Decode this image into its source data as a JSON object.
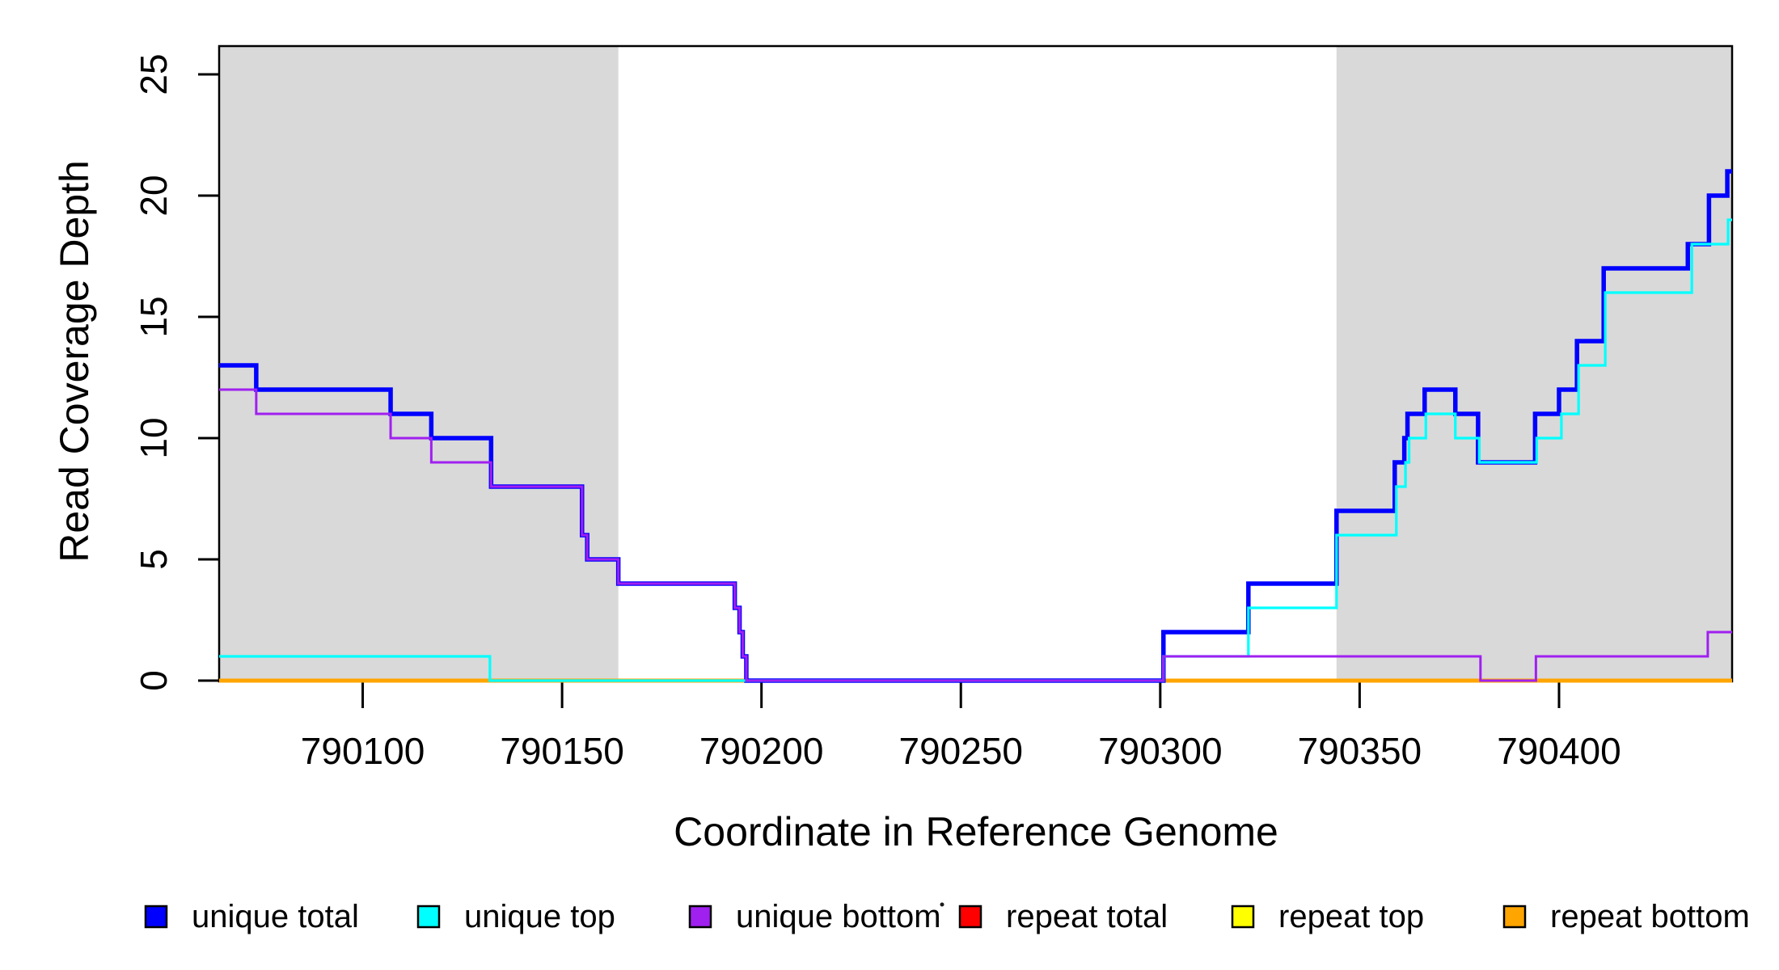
{
  "figure": {
    "xlabel": "Coordinate in Reference Genome",
    "ylabel": "Read Coverage Depth"
  },
  "chart_data": {
    "type": "line",
    "subtype": "step",
    "title": "",
    "xlabel": "Coordinate in Reference Genome",
    "ylabel": "Read Coverage Depth",
    "xlim": [
      790064,
      790443.4
    ],
    "ylim": [
      0,
      25
    ],
    "x_ticks": [
      790100,
      790150,
      790200,
      790250,
      790300,
      790350,
      790400
    ],
    "y_ticks": [
      0,
      5,
      10,
      15,
      20,
      25
    ],
    "grid": false,
    "legend_position": "bottom",
    "shade_color": "#d9d9d9",
    "shaded_regions": [
      [
        790064,
        790164.1
      ],
      [
        790344.2,
        790443.4
      ]
    ],
    "series": [
      {
        "name": "repeat total",
        "color": "#ff0000",
        "lw": 4.5,
        "points": [
          [
            790064,
            0
          ]
        ]
      },
      {
        "name": "repeat top",
        "color": "#ffff00",
        "lw": 4.5,
        "points": [
          [
            790064,
            0
          ]
        ]
      },
      {
        "name": "repeat bottom",
        "color": "#ffa500",
        "lw": 5,
        "points": [
          [
            790064,
            0
          ]
        ]
      },
      {
        "name": "unique total",
        "color": "#0000ff",
        "lw": 5.5,
        "points": [
          [
            790064,
            13
          ],
          [
            790073.3,
            12
          ],
          [
            790107,
            11
          ],
          [
            790117.2,
            10
          ],
          [
            790132.2,
            8
          ],
          [
            790155,
            6
          ],
          [
            790156.3,
            5
          ],
          [
            790164.1,
            4
          ],
          [
            790193.3,
            3
          ],
          [
            790194.5,
            2
          ],
          [
            790195.3,
            1
          ],
          [
            790196.2,
            0
          ],
          [
            790300.8,
            2
          ],
          [
            790322.1,
            4
          ],
          [
            790344.2,
            7
          ],
          [
            790358.8,
            9
          ],
          [
            790361.2,
            10
          ],
          [
            790362,
            11
          ],
          [
            790366.3,
            12
          ],
          [
            790374,
            11
          ],
          [
            790379.7,
            9
          ],
          [
            790394,
            11
          ],
          [
            790400,
            12
          ],
          [
            790404.5,
            14
          ],
          [
            790411.2,
            17
          ],
          [
            790432.3,
            18
          ],
          [
            790437.6,
            20
          ],
          [
            790442.2,
            21
          ]
        ]
      },
      {
        "name": "unique top",
        "color": "#00ffff",
        "lw": 3.2,
        "points": [
          [
            790064,
            1
          ],
          [
            790131.9,
            0
          ],
          [
            790300.8,
            1
          ],
          [
            790322.1,
            3
          ],
          [
            790344.2,
            6
          ],
          [
            790359.2,
            8
          ],
          [
            790361.5,
            9
          ],
          [
            790362.4,
            10
          ],
          [
            790366.6,
            11
          ],
          [
            790374,
            10
          ],
          [
            790380,
            9
          ],
          [
            790394.4,
            10
          ],
          [
            790400.6,
            11
          ],
          [
            790404.9,
            13
          ],
          [
            790411.6,
            16
          ],
          [
            790433.3,
            18
          ],
          [
            790442.4,
            19
          ]
        ]
      },
      {
        "name": "unique bottom",
        "color": "#a020f0",
        "lw": 3,
        "points": [
          [
            790064,
            12
          ],
          [
            790073.3,
            11
          ],
          [
            790107,
            10
          ],
          [
            790117.2,
            9
          ],
          [
            790132.2,
            8
          ],
          [
            790155,
            6
          ],
          [
            790156.3,
            5
          ],
          [
            790164.1,
            4
          ],
          [
            790193.3,
            3
          ],
          [
            790194.5,
            2
          ],
          [
            790195.3,
            1
          ],
          [
            790196.2,
            0
          ],
          [
            790300.8,
            1
          ],
          [
            790380.3,
            0
          ],
          [
            790394.2,
            1
          ],
          [
            790437.3,
            2
          ]
        ]
      }
    ]
  },
  "legend": {
    "items": [
      {
        "label": "unique total",
        "color": "#0000ff"
      },
      {
        "label": "unique top",
        "color": "#00ffff"
      },
      {
        "label": "unique bottom",
        "color": "#a020f0"
      },
      {
        "label": "repeat total",
        "color": "#ff0000"
      },
      {
        "label": "repeat top",
        "color": "#ffff00"
      },
      {
        "label": "repeat bottom",
        "color": "#ffa500"
      }
    ]
  }
}
